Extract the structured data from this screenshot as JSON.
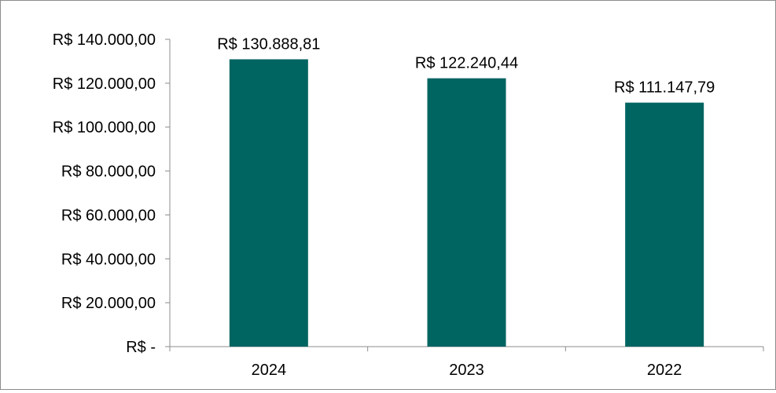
{
  "chart_data": {
    "type": "bar",
    "title": "",
    "xlabel": "",
    "ylabel": "",
    "categories": [
      "2024",
      "2023",
      "2022"
    ],
    "values": [
      130888.81,
      122240.44,
      111147.79
    ],
    "value_labels": [
      "R$ 130.888,81",
      "R$ 122.240,44",
      "R$ 111.147,79"
    ],
    "ylim": [
      0,
      140000
    ],
    "yticks": [
      0,
      20000,
      40000,
      60000,
      80000,
      100000,
      120000,
      140000
    ],
    "ytick_labels": [
      "R$ -",
      "R$ 20.000,00",
      "R$ 40.000,00",
      "R$ 60.000,00",
      "R$ 80.000,00",
      "R$ 100.000,00",
      "R$ 120.000,00",
      "R$ 140.000,00"
    ],
    "grid": false,
    "legend": "none",
    "bar_color": "#006461"
  }
}
